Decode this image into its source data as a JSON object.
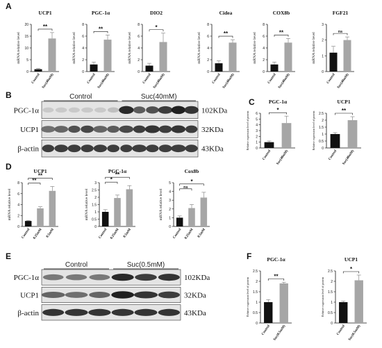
{
  "panels": {
    "A": "A",
    "B": "B",
    "C": "C",
    "D": "D",
    "E": "E",
    "F": "F"
  },
  "colors": {
    "control": "#111111",
    "treated": "#a6a6a6",
    "error": "#777777"
  },
  "chart_data": [
    {
      "id": "A1",
      "type": "bar",
      "title": "UCP1",
      "ylabel": "mRNA relative level",
      "categories": [
        "Control",
        "Suc(40mM)"
      ],
      "values": [
        1.0,
        14.0
      ],
      "errors": [
        0.3,
        2.5
      ],
      "ylim": [
        0,
        20
      ],
      "yticks": [
        0,
        5,
        10,
        15,
        20
      ],
      "sig": [
        {
          "from": 0,
          "to": 1,
          "label": "**"
        }
      ]
    },
    {
      "id": "A2",
      "type": "bar",
      "title": "PGC-1α",
      "ylabel": "mRNA relative level",
      "categories": [
        "Control",
        "Suc(40mM)"
      ],
      "values": [
        1.2,
        5.4
      ],
      "errors": [
        0.4,
        0.8
      ],
      "ylim": [
        0,
        8
      ],
      "yticks": [
        0,
        2,
        4,
        6,
        8
      ],
      "sig": [
        {
          "from": 0,
          "to": 1,
          "label": "**"
        }
      ]
    },
    {
      "id": "A3",
      "type": "bar",
      "title": "DIO2",
      "ylabel": "mRNA relative level",
      "categories": [
        "Control",
        "Suc(40mM)"
      ],
      "values": [
        1.0,
        5.0
      ],
      "errors": [
        0.4,
        1.5
      ],
      "ylim": [
        0,
        8
      ],
      "yticks": [
        0,
        2,
        4,
        6,
        8
      ],
      "sig": [
        {
          "from": 0,
          "to": 1,
          "label": "*"
        }
      ]
    },
    {
      "id": "A4",
      "type": "bar",
      "title": "Cidea",
      "ylabel": "mRNA relative level",
      "categories": [
        "Control",
        "Suc(40mM)"
      ],
      "values": [
        1.4,
        4.9
      ],
      "errors": [
        0.4,
        0.5
      ],
      "ylim": [
        0,
        8
      ],
      "yticks": [
        0,
        2,
        4,
        6,
        8
      ],
      "sig": [
        {
          "from": 0,
          "to": 1,
          "label": "**"
        }
      ]
    },
    {
      "id": "A5",
      "type": "bar",
      "title": "COX8b",
      "ylabel": "mRNA relative level",
      "categories": [
        "Control",
        "Suc(40mM)"
      ],
      "values": [
        1.2,
        4.9
      ],
      "errors": [
        0.4,
        0.7
      ],
      "ylim": [
        0,
        8
      ],
      "yticks": [
        0,
        2,
        4,
        6,
        8
      ],
      "sig": [
        {
          "from": 0,
          "to": 1,
          "label": "**"
        }
      ]
    },
    {
      "id": "A6",
      "type": "bar",
      "title": "FGF21",
      "ylabel": "mRNA relative level",
      "categories": [
        "Control",
        "Suc(40mM)"
      ],
      "values": [
        1.2,
        2.0
      ],
      "errors": [
        0.4,
        0.2
      ],
      "ylim": [
        0,
        3
      ],
      "yticks": [
        0,
        1,
        2,
        3
      ],
      "sig": [
        {
          "from": 0,
          "to": 1,
          "label": "ns"
        }
      ]
    },
    {
      "id": "C1",
      "type": "bar",
      "title": "PGC-1α",
      "ylabel": "Relative expression level of protein",
      "categories": [
        "Control",
        "Suc(40mM)"
      ],
      "values": [
        1.0,
        4.3
      ],
      "errors": [
        0.2,
        1.2
      ],
      "ylim": [
        0,
        6
      ],
      "yticks": [
        0,
        1,
        2,
        3,
        4,
        5,
        6
      ],
      "sig": [
        {
          "from": 0,
          "to": 1,
          "label": "*"
        }
      ]
    },
    {
      "id": "C2",
      "type": "bar",
      "title": "UCP1",
      "ylabel": "Relative expression level of protein",
      "categories": [
        "Control",
        "Suc(40mM)"
      ],
      "values": [
        1.0,
        2.0
      ],
      "errors": [
        0.1,
        0.25
      ],
      "ylim": [
        0,
        2.5
      ],
      "yticks": [
        0,
        0.5,
        1.0,
        1.5,
        2.0,
        2.5
      ],
      "sig": [
        {
          "from": 0,
          "to": 1,
          "label": "**"
        }
      ]
    },
    {
      "id": "D1",
      "type": "bar",
      "title": "UCP1",
      "ylabel": "mRNA relative level",
      "categories": [
        "Control",
        "0.25mM",
        "0.5mM"
      ],
      "values": [
        1.0,
        3.3,
        6.5
      ],
      "errors": [
        0.1,
        0.3,
        0.8
      ],
      "ylim": [
        0,
        8
      ],
      "yticks": [
        0,
        2,
        4,
        6,
        8
      ],
      "sig": [
        {
          "from": 0,
          "to": 1,
          "label": "**"
        },
        {
          "from": 0,
          "to": 2,
          "label": "**"
        }
      ]
    },
    {
      "id": "D2",
      "type": "bar",
      "title": "PGC-1α",
      "ylabel": "mRNA relative level",
      "categories": [
        "Control",
        "0.25mM",
        "0.5mM"
      ],
      "values": [
        1.0,
        1.95,
        2.55
      ],
      "errors": [
        0.15,
        0.2,
        0.25
      ],
      "ylim": [
        0,
        3
      ],
      "yticks": [
        0,
        0.5,
        1.0,
        1.5,
        2.0,
        2.5,
        3.0
      ],
      "sig": [
        {
          "from": 0,
          "to": 1,
          "label": "*"
        },
        {
          "from": 0,
          "to": 2,
          "label": "**"
        }
      ]
    },
    {
      "id": "D3",
      "type": "bar",
      "title": "Cox8b",
      "ylabel": "mRNA relative level",
      "categories": [
        "Control",
        "0.25mM",
        "0.5mM"
      ],
      "values": [
        1.0,
        2.1,
        3.3
      ],
      "errors": [
        0.2,
        0.4,
        0.6
      ],
      "ylim": [
        0,
        5
      ],
      "yticks": [
        0,
        1,
        2,
        3,
        4,
        5
      ],
      "sig": [
        {
          "from": 0,
          "to": 1,
          "label": "ns"
        },
        {
          "from": 0,
          "to": 2,
          "label": "*"
        }
      ]
    },
    {
      "id": "F1",
      "type": "bar",
      "title": "PGC-1α",
      "ylabel": "Relative expression level of protein",
      "categories": [
        "Control",
        "Suc(0.5mM)"
      ],
      "values": [
        1.0,
        1.9
      ],
      "errors": [
        0.12,
        0.05
      ],
      "ylim": [
        0,
        2.5
      ],
      "yticks": [
        0,
        0.5,
        1.0,
        1.5,
        2.0,
        2.5
      ],
      "sig": [
        {
          "from": 0,
          "to": 1,
          "label": "**"
        }
      ]
    },
    {
      "id": "F2",
      "type": "bar",
      "title": "UCP1",
      "ylabel": "Relative expression level of protein",
      "categories": [
        "Control",
        "Suc(0.5mM)"
      ],
      "values": [
        1.0,
        2.05
      ],
      "errors": [
        0.05,
        0.25
      ],
      "ylim": [
        0,
        2.5
      ],
      "yticks": [
        0,
        0.5,
        1.0,
        1.5,
        2.0,
        2.5
      ],
      "sig": [
        {
          "from": 0,
          "to": 1,
          "label": "*"
        }
      ]
    }
  ],
  "blots": [
    {
      "id": "B",
      "groups": [
        "Control",
        "Suc(40mM)"
      ],
      "lanes_per_group": 6,
      "rows": [
        {
          "protein": "PGC-1α",
          "size": "102KDa",
          "intensity": [
            0.1,
            0.1,
            0.1,
            0.1,
            0.1,
            0.15,
            0.9,
            0.65,
            0.7,
            0.8,
            0.95,
            0.85
          ]
        },
        {
          "protein": "UCP1",
          "size": "32KDa",
          "intensity": [
            0.55,
            0.6,
            0.7,
            0.75,
            0.6,
            0.65,
            0.75,
            0.8,
            0.85,
            0.8,
            0.85,
            0.8
          ]
        },
        {
          "protein": "β-actin",
          "size": "43KDa",
          "intensity": [
            0.8,
            0.8,
            0.8,
            0.8,
            0.8,
            0.8,
            0.8,
            0.8,
            0.8,
            0.8,
            0.8,
            0.8
          ]
        }
      ]
    },
    {
      "id": "E",
      "groups": [
        "Control",
        "Suc(0.5mM)"
      ],
      "lanes_per_group": 3,
      "rows": [
        {
          "protein": "PGC-1α",
          "size": "102KDa",
          "intensity": [
            0.5,
            0.5,
            0.5,
            0.9,
            0.8,
            0.85
          ]
        },
        {
          "protein": "UCP1",
          "size": "32KDa",
          "intensity": [
            0.6,
            0.55,
            0.6,
            0.95,
            0.85,
            0.8
          ]
        },
        {
          "protein": "β-actin",
          "size": "43KDa",
          "intensity": [
            0.85,
            0.85,
            0.85,
            0.85,
            0.85,
            0.85
          ]
        }
      ]
    }
  ]
}
